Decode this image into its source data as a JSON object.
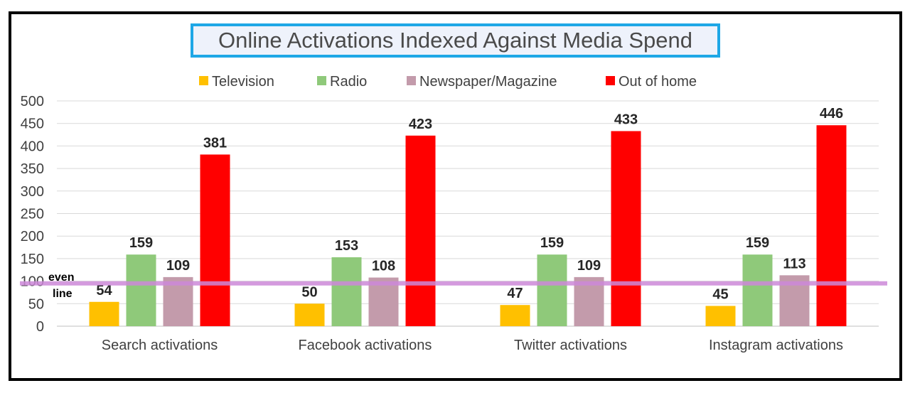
{
  "chart_data": {
    "type": "bar",
    "title": "Online Activations Indexed Against Media Spend",
    "categories": [
      "Search activations",
      "Facebook activations",
      "Twitter activations",
      "Instagram activations"
    ],
    "series": [
      {
        "name": "Television",
        "color": "#ffc000",
        "values": [
          54,
          50,
          47,
          45
        ]
      },
      {
        "name": "Radio",
        "color": "#8fc97a",
        "values": [
          159,
          153,
          159,
          159
        ]
      },
      {
        "name": "Newspaper/Magazine",
        "color": "#c39bab",
        "values": [
          109,
          108,
          109,
          113
        ]
      },
      {
        "name": "Out of home",
        "color": "#ff0000",
        "values": [
          381,
          423,
          433,
          446
        ]
      }
    ],
    "ylim": [
      0,
      500
    ],
    "yticks": [
      0,
      50,
      100,
      150,
      200,
      250,
      300,
      350,
      400,
      450,
      500
    ],
    "grid": true,
    "legend_position": "top",
    "reference_line": {
      "value": 95,
      "label_line1": "even",
      "label_line2": "line",
      "color": "#cc88d8"
    },
    "xlabel": "",
    "ylabel": ""
  }
}
